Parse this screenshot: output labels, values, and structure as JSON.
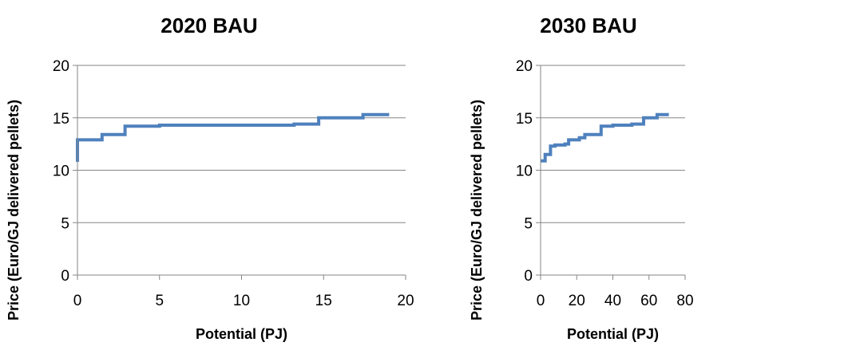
{
  "chart_data": [
    {
      "type": "line",
      "title": "2020 BAU",
      "xlabel": "Potential (PJ)",
      "ylabel": "Price (Euro/GJ delivered pellets)",
      "xlim": [
        0,
        20
      ],
      "ylim": [
        0,
        20
      ],
      "xticks": [
        "0",
        "5",
        "10",
        "15",
        "20"
      ],
      "yticks": [
        "0",
        "5",
        "10",
        "15",
        "20"
      ],
      "grid": "horizontal",
      "step": true,
      "series": [
        {
          "color": "#4f81bd",
          "points": [
            [
              0,
              10.8
            ],
            [
              0,
              12.9
            ],
            [
              1.5,
              12.9
            ],
            [
              1.5,
              13.4
            ],
            [
              2.9,
              13.4
            ],
            [
              2.9,
              14.2
            ],
            [
              5.0,
              14.2
            ],
            [
              5.0,
              14.3
            ],
            [
              13.2,
              14.3
            ],
            [
              13.2,
              14.4
            ],
            [
              14.7,
              14.4
            ],
            [
              14.7,
              15.0
            ],
            [
              17.4,
              15.0
            ],
            [
              17.4,
              15.3
            ],
            [
              19.0,
              15.3
            ]
          ]
        }
      ]
    },
    {
      "type": "line",
      "title": "2030 BAU",
      "xlabel": "Potential (PJ)",
      "ylabel": "Price (Euro/GJ delivered pellets)",
      "xlim": [
        0,
        80
      ],
      "ylim": [
        0,
        20
      ],
      "xticks": [
        "0",
        "20",
        "40",
        "60",
        "80"
      ],
      "yticks": [
        "0",
        "5",
        "10",
        "15",
        "20"
      ],
      "grid": "horizontal",
      "step": true,
      "series": [
        {
          "color": "#4f81bd",
          "points": [
            [
              0,
              10.9
            ],
            [
              2.5,
              10.9
            ],
            [
              2.5,
              11.5
            ],
            [
              5.5,
              11.5
            ],
            [
              5.5,
              12.3
            ],
            [
              8.0,
              12.3
            ],
            [
              8.0,
              12.4
            ],
            [
              13.5,
              12.4
            ],
            [
              13.5,
              12.5
            ],
            [
              15.5,
              12.5
            ],
            [
              15.5,
              12.9
            ],
            [
              21.5,
              12.9
            ],
            [
              21.5,
              13.1
            ],
            [
              24.5,
              13.1
            ],
            [
              24.5,
              13.4
            ],
            [
              33.5,
              13.4
            ],
            [
              33.5,
              14.2
            ],
            [
              40.0,
              14.2
            ],
            [
              40.0,
              14.3
            ],
            [
              50.5,
              14.3
            ],
            [
              50.5,
              14.4
            ],
            [
              57.0,
              14.4
            ],
            [
              57.0,
              15.0
            ],
            [
              64.5,
              15.0
            ],
            [
              64.5,
              15.3
            ],
            [
              71.0,
              15.3
            ]
          ]
        }
      ]
    }
  ]
}
